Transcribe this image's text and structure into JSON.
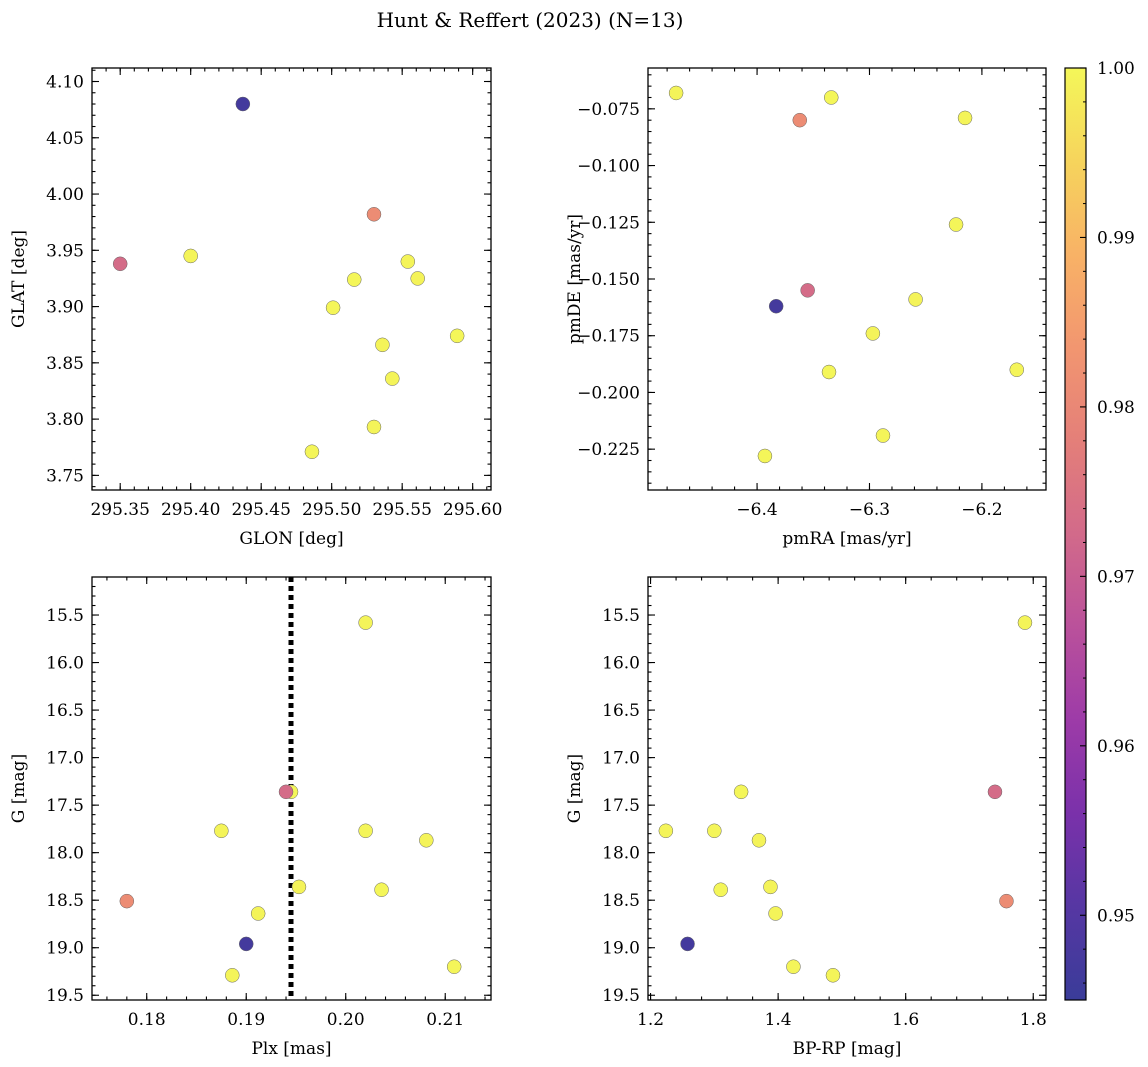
{
  "figure": {
    "title": "Hunt & Reffert (2023) (N=13)"
  },
  "colorbar": {
    "min": 0.945,
    "max": 1.0,
    "ticks": [
      0.95,
      0.96,
      0.97,
      0.98,
      0.99,
      1.0
    ],
    "tick_labels": [
      "0.95",
      "0.96",
      "0.97",
      "0.98",
      "0.99",
      "1.00"
    ],
    "colormap": "plasma"
  },
  "membership_probability": [
    0.9995,
    0.9998,
    0.9996,
    0.9997,
    0.9994,
    0.9993,
    0.9999,
    0.9995,
    0.9996,
    0.9997,
    0.973,
    0.981,
    0.947
  ],
  "chart_data": [
    {
      "type": "scatter",
      "title": "",
      "xlabel": "GLON [deg]",
      "ylabel": "GLAT [deg]",
      "xlim": [
        295.33,
        295.613
      ],
      "ylim": [
        3.737,
        4.112
      ],
      "xticks": [
        295.35,
        295.4,
        295.45,
        295.5,
        295.55,
        295.6
      ],
      "xtick_labels": [
        "295.35",
        "295.40",
        "295.45",
        "295.50",
        "295.55",
        "295.60"
      ],
      "yticks": [
        3.75,
        3.8,
        3.85,
        3.9,
        3.95,
        4.0,
        4.05,
        4.1
      ],
      "ytick_labels": [
        "3.75",
        "3.80",
        "3.85",
        "3.90",
        "3.95",
        "4.00",
        "4.05",
        "4.10"
      ],
      "x": [
        295.4,
        295.516,
        295.554,
        295.501,
        295.561,
        295.536,
        295.589,
        295.543,
        295.53,
        295.486,
        295.35,
        295.53,
        295.437
      ],
      "y": [
        3.945,
        3.924,
        3.94,
        3.899,
        3.925,
        3.866,
        3.874,
        3.836,
        3.793,
        3.771,
        3.938,
        3.982,
        4.08
      ]
    },
    {
      "type": "scatter",
      "title": "",
      "xlabel": "pmRA [mas/yr]",
      "ylabel": "pmDE [mas/yr]",
      "xlim": [
        -6.497,
        -6.143
      ],
      "ylim": [
        -0.243,
        -0.057
      ],
      "xticks": [
        -6.4,
        -6.3,
        -6.2
      ],
      "xtick_labels": [
        "−6.4",
        "−6.3",
        "−6.2"
      ],
      "yticks": [
        -0.225,
        -0.2,
        -0.175,
        -0.15,
        -0.125,
        -0.1,
        -0.075
      ],
      "ytick_labels": [
        "−0.225",
        "−0.200",
        "−0.175",
        "−0.150",
        "−0.125",
        "−0.100",
        "−0.075"
      ],
      "x": [
        -6.472,
        -6.334,
        -6.215,
        -6.223,
        -6.259,
        -6.297,
        -6.336,
        -6.169,
        -6.288,
        -6.393,
        -6.355,
        -6.362,
        -6.383
      ],
      "y": [
        -0.068,
        -0.07,
        -0.079,
        -0.126,
        -0.159,
        -0.174,
        -0.191,
        -0.19,
        -0.219,
        -0.228,
        -0.155,
        -0.08,
        -0.162
      ]
    },
    {
      "type": "scatter",
      "title": "",
      "xlabel": "Plx [mas]",
      "ylabel": "G [mag]",
      "xlim": [
        0.1745,
        0.2146
      ],
      "ylim": [
        19.55,
        15.1
      ],
      "y_inverted": true,
      "vline": {
        "x": 0.1945,
        "style": "dotted",
        "color": "#000000"
      },
      "xticks": [
        0.18,
        0.19,
        0.2,
        0.21
      ],
      "xtick_labels": [
        "0.18",
        "0.19",
        "0.20",
        "0.21"
      ],
      "yticks": [
        15.5,
        16.0,
        16.5,
        17.0,
        17.5,
        18.0,
        18.5,
        19.0,
        19.5
      ],
      "ytick_labels": [
        "15.5",
        "16.0",
        "16.5",
        "17.0",
        "17.5",
        "18.0",
        "18.5",
        "19.0",
        "19.5"
      ],
      "x": [
        0.202,
        0.1945,
        0.1875,
        0.202,
        0.2081,
        0.1953,
        0.2036,
        0.1912,
        0.1886,
        0.2109,
        0.194,
        0.178,
        0.19
      ],
      "y": [
        15.58,
        17.36,
        17.77,
        17.77,
        17.87,
        18.36,
        18.39,
        18.64,
        19.29,
        19.2,
        17.36,
        18.51,
        18.96
      ]
    },
    {
      "type": "scatter",
      "title": "",
      "xlabel": "BP-RP [mag]",
      "ylabel": "G [mag]",
      "xlim": [
        1.196,
        1.82
      ],
      "ylim": [
        19.55,
        15.1
      ],
      "y_inverted": true,
      "xticks": [
        1.2,
        1.4,
        1.6,
        1.8
      ],
      "xtick_labels": [
        "1.2",
        "1.4",
        "1.6",
        "1.8"
      ],
      "yticks": [
        15.5,
        16.0,
        16.5,
        17.0,
        17.5,
        18.0,
        18.5,
        19.0,
        19.5
      ],
      "ytick_labels": [
        "15.5",
        "16.0",
        "16.5",
        "17.0",
        "17.5",
        "18.0",
        "18.5",
        "19.0",
        "19.5"
      ],
      "x": [
        1.787,
        1.342,
        1.224,
        1.3,
        1.37,
        1.388,
        1.31,
        1.396,
        1.486,
        1.424,
        1.74,
        1.758,
        1.258
      ],
      "y": [
        15.58,
        17.36,
        17.77,
        17.77,
        17.87,
        18.36,
        18.39,
        18.64,
        19.29,
        19.2,
        17.36,
        18.51,
        18.96
      ]
    }
  ]
}
